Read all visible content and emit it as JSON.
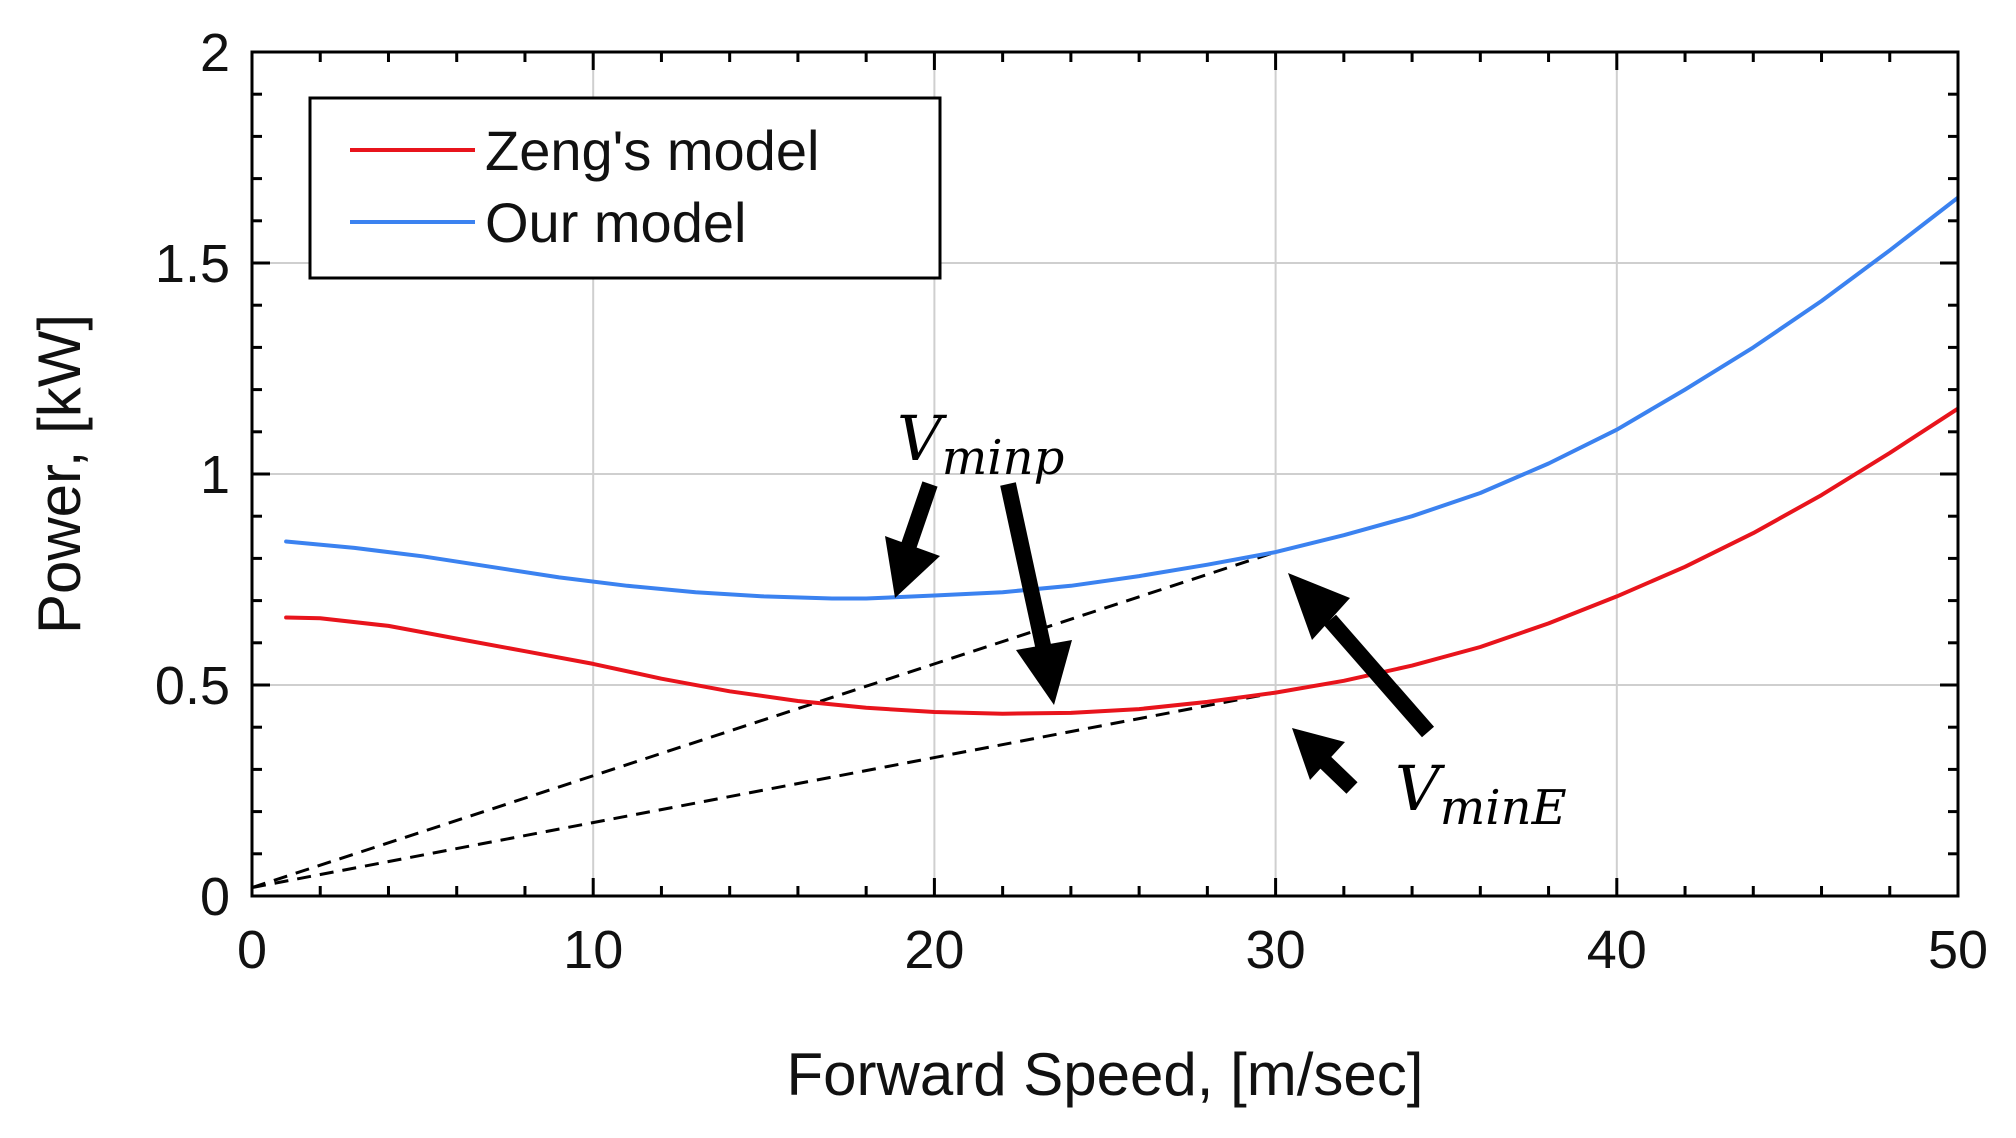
{
  "chart_data": {
    "type": "line",
    "xlabel": "Forward Speed, [m/sec]",
    "ylabel": "Power, [kW]",
    "xlim": [
      0,
      50
    ],
    "ylim": [
      0,
      2
    ],
    "xticks": [
      0,
      10,
      20,
      30,
      40,
      50
    ],
    "xtick_labels": [
      "0",
      "10",
      "20",
      "30",
      "40",
      "50"
    ],
    "yticks": [
      0,
      0.5,
      1,
      1.5,
      2
    ],
    "ytick_labels": [
      "0",
      "0.5",
      "1",
      "1.5",
      "2"
    ],
    "grid": true,
    "legend_position": "top-left",
    "series": [
      {
        "name": "Zeng's model",
        "color": "#e8141c",
        "x": [
          1,
          2,
          4,
          6,
          8,
          10,
          12,
          14,
          16,
          18,
          20,
          22,
          24,
          26,
          28,
          30,
          32,
          34,
          36,
          38,
          40,
          42,
          44,
          46,
          48,
          50
        ],
        "y": [
          0.66,
          0.658,
          0.64,
          0.61,
          0.58,
          0.55,
          0.515,
          0.485,
          0.462,
          0.446,
          0.436,
          0.432,
          0.434,
          0.443,
          0.46,
          0.482,
          0.51,
          0.546,
          0.59,
          0.646,
          0.71,
          0.78,
          0.86,
          0.95,
          1.05,
          1.155
        ]
      },
      {
        "name": "Our model",
        "color": "#3b82f0",
        "x": [
          1,
          3,
          5,
          7,
          9,
          11,
          13,
          15,
          17,
          18,
          20,
          22,
          24,
          26,
          28,
          30,
          32,
          34,
          36,
          38,
          40,
          42,
          44,
          46,
          48,
          50
        ],
        "y": [
          0.84,
          0.825,
          0.805,
          0.78,
          0.755,
          0.735,
          0.72,
          0.71,
          0.705,
          0.705,
          0.712,
          0.72,
          0.735,
          0.758,
          0.785,
          0.815,
          0.855,
          0.9,
          0.955,
          1.025,
          1.105,
          1.2,
          1.3,
          1.41,
          1.53,
          1.655
        ]
      }
    ],
    "tangent_lines": [
      {
        "name": "tangent-to-our-model",
        "from": [
          0,
          0.02
        ],
        "to": [
          30,
          0.815
        ],
        "style": "dashed",
        "color": "#000000"
      },
      {
        "name": "tangent-to-zengs-model",
        "from": [
          0,
          0.02
        ],
        "to": [
          30,
          0.482
        ],
        "style": "dashed",
        "color": "#000000"
      }
    ],
    "annotations": [
      {
        "id": "vminp",
        "main": "V",
        "subscript": "minp"
      },
      {
        "id": "vminE",
        "main": "V",
        "subscript": "minE"
      }
    ]
  }
}
